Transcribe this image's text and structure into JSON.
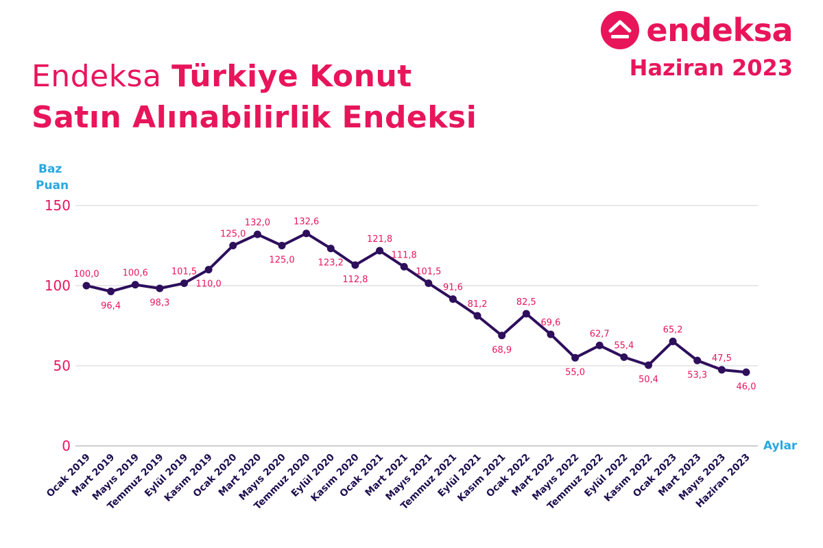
{
  "brand": {
    "name": "endeksa",
    "date": "Haziran 2023",
    "color": "#e8155b"
  },
  "header": {
    "title_light": "Endeksa",
    "title_bold_line1": "Türkiye Konut",
    "title_bold_line2": "Satın Alınabilirlik Endeksi"
  },
  "chart_data": {
    "type": "line",
    "title": "Endeksa Türkiye Konut Satın Alınabilirlik Endeksi",
    "ylabel_lines": [
      "Baz",
      "Puan"
    ],
    "xlabel": "Aylar",
    "ylim": [
      0,
      150
    ],
    "yticks": [
      0,
      50,
      100,
      150
    ],
    "grid": true,
    "line_color": "#2d0f5c",
    "label_color": "#e8155b",
    "categories": [
      "Ocak 2019",
      "Mart 2019",
      "Mayıs 2019",
      "Temmuz 2019",
      "Eylül 2019",
      "Kasım 2019",
      "Ocak 2020",
      "Mart 2020",
      "Mayıs 2020",
      "Temmuz 2020",
      "Eylül 2020",
      "Kasım 2020",
      "Ocak 2021",
      "Mart 2021",
      "Mayıs 2021",
      "Temmuz 2021",
      "Eylül 2021",
      "Kasım 2021",
      "Ocak 2022",
      "Mart 2022",
      "Mayıs 2022",
      "Temmuz 2022",
      "Eylül 2022",
      "Kasım 2022",
      "Ocak 2023",
      "Mart 2023",
      "Mayıs 2023",
      "Haziran 2023"
    ],
    "values": [
      100.0,
      96.4,
      100.6,
      98.3,
      101.5,
      110.0,
      125.0,
      132.0,
      125.0,
      132.6,
      123.2,
      112.8,
      121.8,
      111.8,
      101.5,
      91.6,
      81.2,
      68.9,
      82.5,
      69.6,
      55.0,
      62.7,
      55.4,
      50.4,
      65.2,
      53.3,
      47.5,
      46.0
    ],
    "value_labels": [
      "100,0",
      "96,4",
      "100,6",
      "98,3",
      "101,5",
      "110,0",
      "125,0",
      "132,0",
      "125,0",
      "132,6",
      "123,2",
      "112,8",
      "121,8",
      "111,8",
      "101,5",
      "91,6",
      "81,2",
      "68,9",
      "82,5",
      "69,6",
      "55,0",
      "62,7",
      "55,4",
      "50,4",
      "65,2",
      "53,3",
      "47,5",
      "46,0"
    ],
    "label_positions": [
      "above",
      "below",
      "above",
      "below",
      "above",
      "below",
      "above",
      "above",
      "below",
      "above",
      "below",
      "below",
      "above",
      "above",
      "above",
      "above",
      "above",
      "below",
      "above",
      "above",
      "below",
      "above",
      "above",
      "below",
      "above",
      "below",
      "above",
      "below"
    ]
  }
}
